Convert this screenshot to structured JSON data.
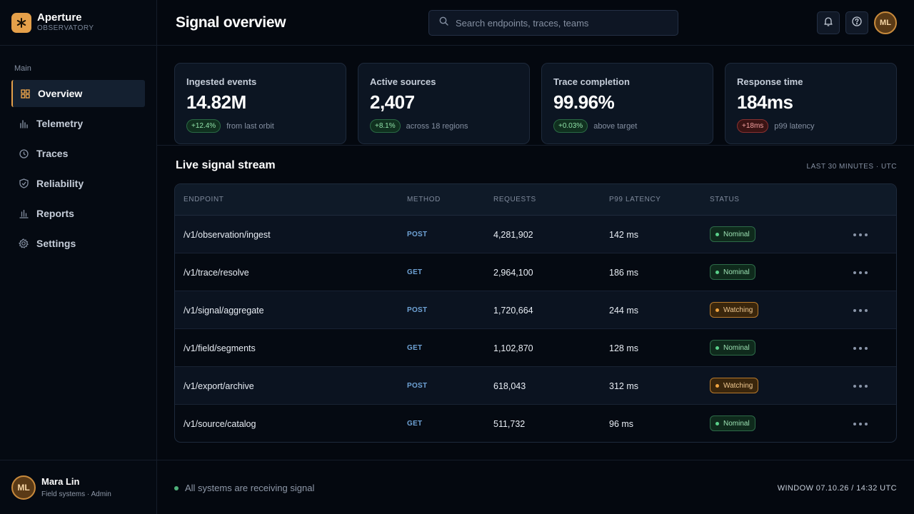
{
  "brand": {
    "name": "Aperture",
    "subtitle": "OBSERVATORY",
    "logo_icon": "asterisk-icon"
  },
  "sidebar": {
    "section_label": "Main",
    "items": [
      {
        "label": "Overview",
        "icon": "grid-icon",
        "active": true
      },
      {
        "label": "Telemetry",
        "icon": "bars-icon"
      },
      {
        "label": "Traces",
        "icon": "clock-icon"
      },
      {
        "label": "Reliability",
        "icon": "shield-check-icon"
      },
      {
        "label": "Reports",
        "icon": "chart-icon"
      },
      {
        "label": "Settings",
        "icon": "gear-icon"
      }
    ],
    "user": {
      "initials": "ML",
      "name": "Mara Lin",
      "role": "Field systems · Admin"
    }
  },
  "header": {
    "title": "Signal overview",
    "search": {
      "placeholder": "Search endpoints, traces, teams"
    },
    "avatar_initials": "ML"
  },
  "stats": [
    {
      "label": "Ingested events",
      "value": "14.82M",
      "delta": "+12.4%",
      "delta_tone": "good",
      "note": "from last orbit"
    },
    {
      "label": "Active sources",
      "value": "2,407",
      "delta": "+8.1%",
      "delta_tone": "good",
      "note": "across 18 regions"
    },
    {
      "label": "Trace completion",
      "value": "99.96%",
      "delta": "+0.03%",
      "delta_tone": "good",
      "note": "above target"
    },
    {
      "label": "Response time",
      "value": "184ms",
      "delta": "+18ms",
      "delta_tone": "bad",
      "note": "p99 latency"
    }
  ],
  "stream": {
    "title": "Live signal stream",
    "meta": "LAST 30 MINUTES · UTC",
    "columns": [
      "ENDPOINT",
      "METHOD",
      "REQUESTS",
      "P99 LATENCY",
      "STATUS"
    ],
    "rows": [
      {
        "endpoint": "/v1/observation/ingest",
        "method": "POST",
        "requests": "4,281,902",
        "latency": "142 ms",
        "status": "Nominal",
        "tone": "ok"
      },
      {
        "endpoint": "/v1/trace/resolve",
        "method": "GET",
        "requests": "2,964,100",
        "latency": "186 ms",
        "status": "Nominal",
        "tone": "ok"
      },
      {
        "endpoint": "/v1/signal/aggregate",
        "method": "POST",
        "requests": "1,720,664",
        "latency": "244 ms",
        "status": "Watching",
        "tone": "warn"
      },
      {
        "endpoint": "/v1/field/segments",
        "method": "GET",
        "requests": "1,102,870",
        "latency": "128 ms",
        "status": "Nominal",
        "tone": "ok"
      },
      {
        "endpoint": "/v1/export/archive",
        "method": "POST",
        "requests": "618,043",
        "latency": "312 ms",
        "status": "Watching",
        "tone": "warn"
      },
      {
        "endpoint": "/v1/source/catalog",
        "method": "GET",
        "requests": "511,732",
        "latency": "96 ms",
        "status": "Nominal",
        "tone": "ok"
      }
    ]
  },
  "footer": {
    "status": "All systems are receiving signal",
    "window": "WINDOW 07.10.26 / 14:32 UTC"
  },
  "colors": {
    "accent": "#e5a04a",
    "background": "#04080f",
    "good": "#5ad08a",
    "warn": "#f0a440",
    "bad": "#f3a0a0"
  }
}
